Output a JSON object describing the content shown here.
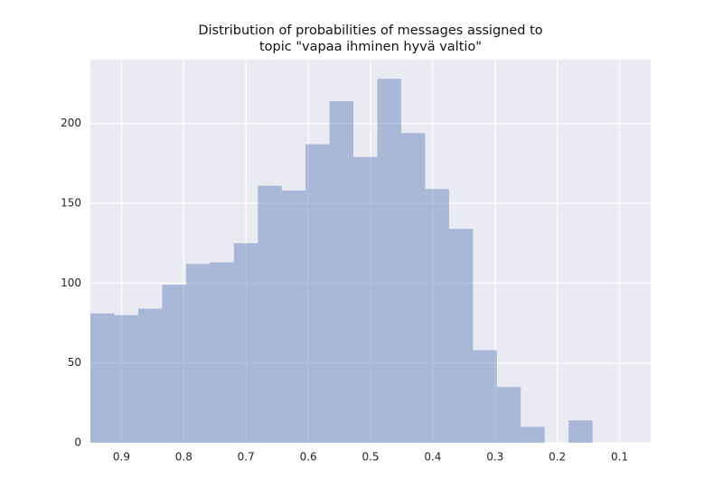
{
  "chart_data": {
    "type": "histogram",
    "title": [
      "Distribution of probabilities of messages assigned to",
      "topic \"vapaa ihminen hyvä valtio\""
    ],
    "bins": [
      0.1435,
      0.1819,
      0.2203,
      0.2587,
      0.2971,
      0.3355,
      0.3739,
      0.4123,
      0.4507,
      0.4891,
      0.5275,
      0.5659,
      0.6043,
      0.6427,
      0.6811,
      0.7195,
      0.7579,
      0.7963,
      0.8347,
      0.8731,
      0.9115,
      0.95
    ],
    "values": [
      14,
      0,
      10,
      35,
      58,
      134,
      159,
      194,
      228,
      179,
      214,
      187,
      158,
      161,
      125,
      113,
      112,
      99,
      84,
      80,
      81
    ],
    "color": "#4c72b0",
    "xlim": [
      0.95,
      0.05
    ],
    "xticks": [
      0.9,
      0.8,
      0.7,
      0.6,
      0.5,
      0.4,
      0.3,
      0.2,
      0.1
    ],
    "ylim": [
      0,
      240
    ],
    "yticks": [
      0,
      50,
      100,
      150,
      200
    ],
    "grid": true
  }
}
